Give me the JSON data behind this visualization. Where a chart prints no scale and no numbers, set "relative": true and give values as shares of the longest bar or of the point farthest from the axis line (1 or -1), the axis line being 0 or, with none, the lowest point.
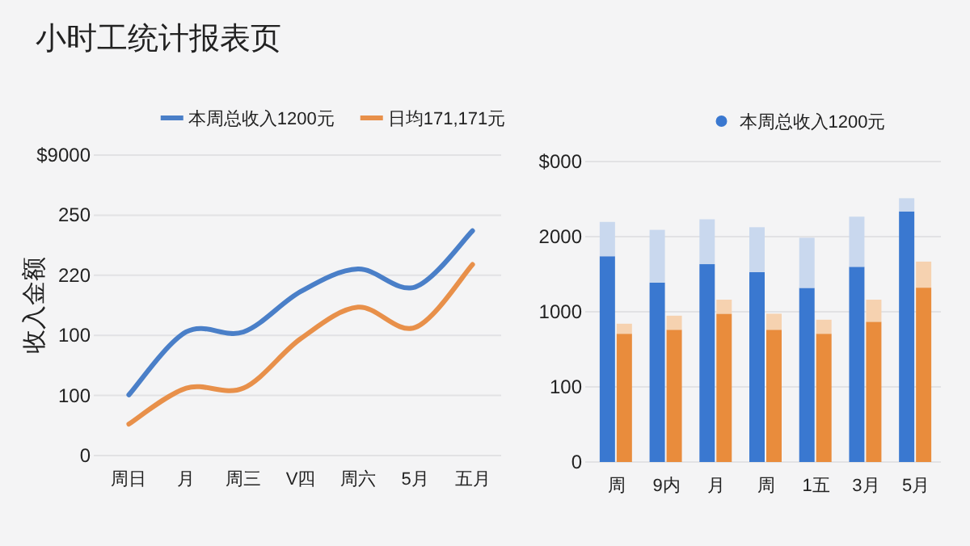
{
  "chart_data": [
    {
      "type": "line",
      "relative": true,
      "title": "小时工统计报表页",
      "ylabel": "收入金额",
      "categories": [
        "周日",
        "月",
        "周三",
        "V四",
        "周六",
        "5月",
        "五月"
      ],
      "series": [
        {
          "name": "本周总收入1200元",
          "color": "#4a7fc8",
          "values": [
            0.27,
            0.55,
            0.55,
            0.73,
            0.83,
            0.75,
            1
          ]
        },
        {
          "name": "日均171,171元",
          "color": "#e8904a",
          "values": [
            0.14,
            0.3,
            0.3,
            0.52,
            0.66,
            0.57,
            0.85
          ]
        }
      ],
      "annotations": [
        "0",
        "100",
        "100",
        "220",
        "250",
        "$9000"
      ],
      "grid": "y",
      "legend": "top"
    },
    {
      "type": "bar",
      "relative": true,
      "stacked": true,
      "categories": [
        "周",
        "9内",
        "月",
        "周",
        "1五",
        "3月",
        "5月"
      ],
      "series": [
        {
          "name": "本周总收入1200元",
          "color": "#3a78d0",
          "values": [
            0.78,
            0.68,
            0.75,
            0.72,
            0.66,
            0.74,
            0.95
          ]
        },
        {
          "color": "#c9d8ee",
          "values": [
            0.13,
            0.2,
            0.17,
            0.17,
            0.19,
            0.19,
            0.05
          ]
        }
      ],
      "annotations": [
        "0",
        "100",
        "1000",
        "2000",
        "$000"
      ],
      "grid": "y",
      "legend": "top"
    },
    {
      "type": "bar",
      "relative": true,
      "stacked": true,
      "categories": [
        null,
        null,
        null,
        null,
        null,
        null,
        null
      ],
      "series": [
        {
          "color": "#e98c3c",
          "values": [
            0.64,
            0.66,
            0.74,
            0.66,
            0.64,
            0.7,
            0.87
          ]
        },
        {
          "color": "#f6d2b0",
          "values": [
            0.05,
            0.07,
            0.07,
            0.08,
            0.07,
            0.11,
            0.13
          ]
        }
      ]
    }
  ]
}
